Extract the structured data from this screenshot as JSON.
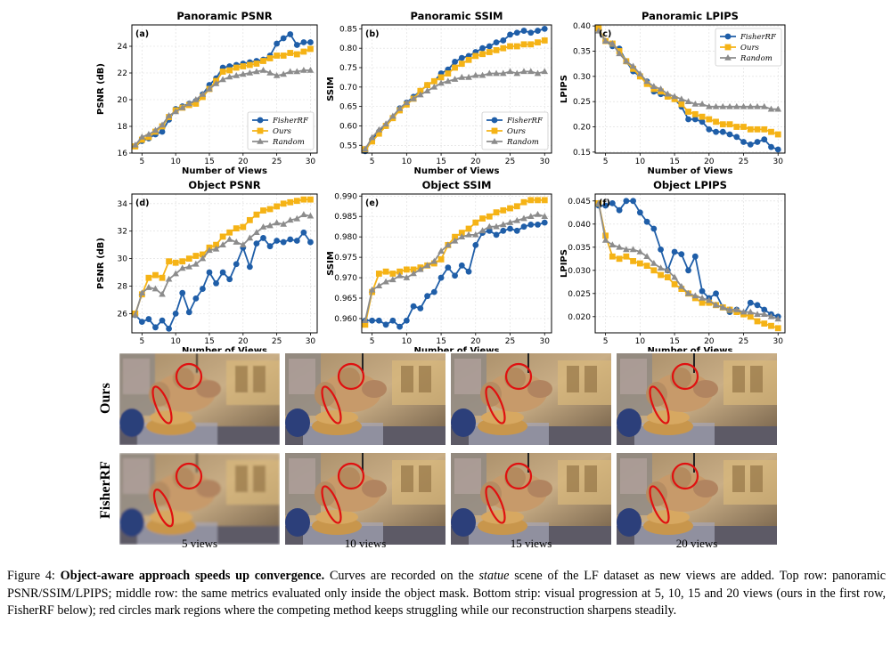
{
  "x_label": "Number of Views",
  "legend_entries": [
    "FisherRF",
    "Ours",
    "Random"
  ],
  "series_colors": {
    "FisherRF": "#1f5ea8",
    "Ours": "#f5b316",
    "Random": "#8c8c8c"
  },
  "chart_data": [
    {
      "type": "line",
      "id": "a",
      "panel_tag": "(a)",
      "title": "Panoramic PSNR",
      "ylabel": "PSNR (dB)",
      "xlim": [
        3.5,
        31
      ],
      "ylim": [
        16,
        25.6
      ],
      "xticks": [
        5,
        10,
        15,
        20,
        25,
        30
      ],
      "yticks": [
        16,
        18,
        20,
        22,
        24
      ],
      "ytick_labels": [
        "16",
        "18",
        "20",
        "22",
        "24"
      ],
      "legend": "bottom-right",
      "x": [
        4,
        5,
        6,
        7,
        8,
        9,
        10,
        11,
        12,
        13,
        14,
        15,
        16,
        17,
        18,
        19,
        20,
        21,
        22,
        23,
        24,
        25,
        26,
        27,
        28,
        29,
        30
      ],
      "series": [
        {
          "name": "FisherRF",
          "values": [
            16.5,
            16.9,
            17.1,
            17.4,
            17.6,
            18.5,
            19.3,
            19.5,
            19.7,
            19.9,
            20.4,
            21.1,
            21.6,
            22.4,
            22.5,
            22.6,
            22.7,
            22.8,
            22.9,
            23.0,
            23.3,
            24.2,
            24.6,
            24.9,
            24.1,
            24.3,
            24.3
          ]
        },
        {
          "name": "Ours",
          "values": [
            16.5,
            17.0,
            17.2,
            17.6,
            18.0,
            18.7,
            19.2,
            19.4,
            19.6,
            19.7,
            20.2,
            20.8,
            21.4,
            22.1,
            22.2,
            22.4,
            22.5,
            22.6,
            22.7,
            22.9,
            23.1,
            23.3,
            23.3,
            23.5,
            23.4,
            23.6,
            23.8
          ]
        },
        {
          "name": "Random",
          "values": [
            16.6,
            17.2,
            17.4,
            17.7,
            18.1,
            18.8,
            19.1,
            19.4,
            19.7,
            20.0,
            20.4,
            20.8,
            21.2,
            21.5,
            21.7,
            21.8,
            21.9,
            22.0,
            22.1,
            22.2,
            22.0,
            21.8,
            21.9,
            22.1,
            22.1,
            22.2,
            22.2
          ]
        }
      ]
    },
    {
      "type": "line",
      "id": "b",
      "panel_tag": "(b)",
      "title": "Panoramic SSIM",
      "ylabel": "SSIM",
      "xlim": [
        3.5,
        31
      ],
      "ylim": [
        0.53,
        0.86
      ],
      "xticks": [
        5,
        10,
        15,
        20,
        25,
        30
      ],
      "yticks": [
        0.55,
        0.6,
        0.65,
        0.7,
        0.75,
        0.8,
        0.85
      ],
      "ytick_labels": [
        "0.55",
        "0.60",
        "0.65",
        "0.70",
        "0.75",
        "0.80",
        "0.85"
      ],
      "legend": "bottom-right",
      "x": [
        4,
        5,
        6,
        7,
        8,
        9,
        10,
        11,
        12,
        13,
        14,
        15,
        16,
        17,
        18,
        19,
        20,
        21,
        22,
        23,
        24,
        25,
        26,
        27,
        28,
        29,
        30
      ],
      "series": [
        {
          "name": "FisherRF",
          "values": [
            0.535,
            0.565,
            0.585,
            0.6,
            0.62,
            0.645,
            0.66,
            0.675,
            0.69,
            0.705,
            0.715,
            0.735,
            0.745,
            0.765,
            0.775,
            0.78,
            0.79,
            0.8,
            0.805,
            0.815,
            0.82,
            0.835,
            0.84,
            0.845,
            0.84,
            0.845,
            0.85
          ]
        },
        {
          "name": "Ours",
          "values": [
            0.54,
            0.56,
            0.58,
            0.6,
            0.62,
            0.64,
            0.655,
            0.67,
            0.69,
            0.705,
            0.715,
            0.725,
            0.735,
            0.75,
            0.76,
            0.77,
            0.78,
            0.785,
            0.79,
            0.795,
            0.8,
            0.805,
            0.805,
            0.81,
            0.81,
            0.815,
            0.82
          ]
        },
        {
          "name": "Random",
          "values": [
            0.54,
            0.57,
            0.59,
            0.605,
            0.625,
            0.645,
            0.66,
            0.67,
            0.68,
            0.69,
            0.7,
            0.71,
            0.715,
            0.72,
            0.725,
            0.725,
            0.73,
            0.73,
            0.735,
            0.735,
            0.735,
            0.74,
            0.735,
            0.74,
            0.74,
            0.735,
            0.74
          ]
        }
      ]
    },
    {
      "type": "line",
      "id": "c",
      "panel_tag": "(c)",
      "title": "Panoramic LPIPS",
      "ylabel": "LPIPS",
      "xlim": [
        3.5,
        31
      ],
      "ylim": [
        0.148,
        0.402
      ],
      "xticks": [
        5,
        10,
        15,
        20,
        25,
        30
      ],
      "yticks": [
        0.15,
        0.2,
        0.25,
        0.3,
        0.35,
        0.4
      ],
      "ytick_labels": [
        "0.15",
        "0.20",
        "0.25",
        "0.30",
        "0.35",
        "0.40"
      ],
      "legend": "top-right",
      "x": [
        4,
        5,
        6,
        7,
        8,
        9,
        10,
        11,
        12,
        13,
        14,
        15,
        16,
        17,
        18,
        19,
        20,
        21,
        22,
        23,
        24,
        25,
        26,
        27,
        28,
        29,
        30
      ],
      "series": [
        {
          "name": "FisherRF",
          "values": [
            0.395,
            0.37,
            0.36,
            0.355,
            0.33,
            0.31,
            0.3,
            0.29,
            0.27,
            0.265,
            0.26,
            0.255,
            0.24,
            0.215,
            0.215,
            0.21,
            0.195,
            0.19,
            0.19,
            0.185,
            0.18,
            0.17,
            0.165,
            0.17,
            0.175,
            0.16,
            0.155
          ]
        },
        {
          "name": "Ours",
          "values": [
            0.395,
            0.37,
            0.365,
            0.35,
            0.33,
            0.315,
            0.3,
            0.285,
            0.275,
            0.27,
            0.26,
            0.255,
            0.245,
            0.23,
            0.225,
            0.22,
            0.215,
            0.21,
            0.205,
            0.205,
            0.2,
            0.2,
            0.195,
            0.195,
            0.195,
            0.19,
            0.185
          ]
        },
        {
          "name": "Random",
          "values": [
            0.39,
            0.37,
            0.365,
            0.345,
            0.33,
            0.32,
            0.305,
            0.29,
            0.28,
            0.275,
            0.265,
            0.26,
            0.255,
            0.25,
            0.245,
            0.245,
            0.24,
            0.24,
            0.24,
            0.24,
            0.24,
            0.24,
            0.24,
            0.24,
            0.24,
            0.235,
            0.235
          ]
        }
      ]
    },
    {
      "type": "line",
      "id": "d",
      "panel_tag": "(d)",
      "title": "Object PSNR",
      "ylabel": "PSNR (dB)",
      "xlim": [
        3.5,
        31
      ],
      "ylim": [
        24.6,
        34.7
      ],
      "xticks": [
        5,
        10,
        15,
        20,
        25,
        30
      ],
      "yticks": [
        26,
        28,
        30,
        32,
        34
      ],
      "ytick_labels": [
        "26",
        "28",
        "30",
        "32",
        "34"
      ],
      "legend": "none",
      "x": [
        4,
        5,
        6,
        7,
        8,
        9,
        10,
        11,
        12,
        13,
        14,
        15,
        16,
        17,
        18,
        19,
        20,
        21,
        22,
        23,
        24,
        25,
        26,
        27,
        28,
        29,
        30
      ],
      "series": [
        {
          "name": "FisherRF",
          "values": [
            25.9,
            25.4,
            25.6,
            25.0,
            25.5,
            24.9,
            26.0,
            27.5,
            26.1,
            27.1,
            27.8,
            29.0,
            28.2,
            29.0,
            28.5,
            29.6,
            30.8,
            29.4,
            31.1,
            31.5,
            30.9,
            31.3,
            31.2,
            31.4,
            31.3,
            31.9,
            31.2
          ]
        },
        {
          "name": "Ours",
          "values": [
            26.0,
            27.4,
            28.6,
            28.8,
            28.6,
            29.8,
            29.7,
            29.8,
            30.0,
            30.2,
            30.3,
            30.8,
            31.0,
            31.6,
            31.9,
            32.2,
            32.3,
            32.8,
            33.2,
            33.5,
            33.6,
            33.8,
            34.0,
            34.1,
            34.2,
            34.3,
            34.3
          ]
        },
        {
          "name": "Random",
          "values": [
            25.9,
            27.5,
            27.9,
            27.8,
            27.4,
            28.5,
            28.9,
            29.3,
            29.4,
            29.6,
            30.0,
            30.6,
            30.7,
            31.0,
            31.4,
            31.2,
            31.0,
            31.5,
            31.9,
            32.3,
            32.4,
            32.6,
            32.5,
            32.8,
            32.9,
            33.2,
            33.1
          ]
        }
      ]
    },
    {
      "type": "line",
      "id": "e",
      "panel_tag": "(e)",
      "title": "Object SSIM",
      "ylabel": "SSIM",
      "xlim": [
        3.5,
        31
      ],
      "ylim": [
        0.9565,
        0.9905
      ],
      "xticks": [
        5,
        10,
        15,
        20,
        25,
        30
      ],
      "yticks": [
        0.96,
        0.965,
        0.97,
        0.975,
        0.98,
        0.985,
        0.99
      ],
      "ytick_labels": [
        "0.960",
        "0.965",
        "0.970",
        "0.975",
        "0.980",
        "0.985",
        "0.990"
      ],
      "legend": "none",
      "x": [
        4,
        5,
        6,
        7,
        8,
        9,
        10,
        11,
        12,
        13,
        14,
        15,
        16,
        17,
        18,
        19,
        20,
        21,
        22,
        23,
        24,
        25,
        26,
        27,
        28,
        29,
        30
      ],
      "series": [
        {
          "name": "FisherRF",
          "values": [
            0.9595,
            0.9595,
            0.9595,
            0.9585,
            0.9595,
            0.958,
            0.9595,
            0.963,
            0.9625,
            0.9655,
            0.9665,
            0.97,
            0.9725,
            0.9705,
            0.973,
            0.9715,
            0.978,
            0.981,
            0.9815,
            0.9805,
            0.9815,
            0.982,
            0.9815,
            0.9825,
            0.983,
            0.983,
            0.9835
          ]
        },
        {
          "name": "Ours",
          "values": [
            0.9585,
            0.9665,
            0.971,
            0.9715,
            0.971,
            0.9715,
            0.972,
            0.972,
            0.9725,
            0.973,
            0.9735,
            0.9745,
            0.978,
            0.98,
            0.981,
            0.982,
            0.9835,
            0.9845,
            0.985,
            0.986,
            0.9865,
            0.987,
            0.9875,
            0.9885,
            0.989,
            0.989,
            0.989
          ]
        },
        {
          "name": "Random",
          "values": [
            0.9595,
            0.967,
            0.968,
            0.969,
            0.9695,
            0.9705,
            0.97,
            0.971,
            0.972,
            0.973,
            0.974,
            0.9765,
            0.978,
            0.979,
            0.98,
            0.9805,
            0.9805,
            0.9815,
            0.9825,
            0.9825,
            0.983,
            0.9835,
            0.984,
            0.9845,
            0.985,
            0.9855,
            0.985
          ]
        }
      ]
    },
    {
      "type": "line",
      "id": "f",
      "panel_tag": "(f)",
      "title": "Object LPIPS",
      "ylabel": "LPIPS",
      "xlim": [
        3.5,
        31
      ],
      "ylim": [
        0.0165,
        0.0465
      ],
      "xticks": [
        5,
        10,
        15,
        20,
        25,
        30
      ],
      "yticks": [
        0.02,
        0.025,
        0.03,
        0.035,
        0.04,
        0.045
      ],
      "ytick_labels": [
        "0.020",
        "0.025",
        "0.030",
        "0.035",
        "0.040",
        "0.045"
      ],
      "legend": "none",
      "x": [
        4,
        5,
        6,
        7,
        8,
        9,
        10,
        11,
        12,
        13,
        14,
        15,
        16,
        17,
        18,
        19,
        20,
        21,
        22,
        23,
        24,
        25,
        26,
        27,
        28,
        29,
        30
      ],
      "series": [
        {
          "name": "FisherRF",
          "values": [
            0.044,
            0.044,
            0.0445,
            0.043,
            0.045,
            0.045,
            0.0425,
            0.0405,
            0.039,
            0.0345,
            0.03,
            0.034,
            0.0335,
            0.03,
            0.033,
            0.0255,
            0.024,
            0.025,
            0.022,
            0.021,
            0.0215,
            0.0205,
            0.023,
            0.0225,
            0.0215,
            0.0205,
            0.02
          ]
        },
        {
          "name": "Ours",
          "values": [
            0.0445,
            0.0375,
            0.033,
            0.0325,
            0.033,
            0.032,
            0.0315,
            0.031,
            0.03,
            0.029,
            0.0285,
            0.027,
            0.026,
            0.025,
            0.024,
            0.023,
            0.023,
            0.0225,
            0.022,
            0.0215,
            0.021,
            0.0205,
            0.02,
            0.019,
            0.0185,
            0.018,
            0.0175
          ]
        },
        {
          "name": "Random",
          "values": [
            0.0445,
            0.0365,
            0.0355,
            0.035,
            0.0345,
            0.0345,
            0.034,
            0.033,
            0.0315,
            0.0305,
            0.03,
            0.0285,
            0.0265,
            0.025,
            0.0245,
            0.024,
            0.0235,
            0.0225,
            0.022,
            0.0215,
            0.0215,
            0.021,
            0.021,
            0.0205,
            0.0205,
            0.02,
            0.0195
          ]
        }
      ]
    }
  ],
  "strip": {
    "row_labels": [
      "Ours",
      "FisherRF"
    ],
    "column_labels": [
      "5 views",
      "10 views",
      "15 views",
      "20 views"
    ]
  },
  "caption": {
    "prefix": "Figure 4: ",
    "bold": "Object-aware approach speeds up convergence.",
    "text1": " Curves are recorded on the ",
    "italic": "statue",
    "text2": " scene of the LF dataset as new views are added. Top row: panoramic PSNR/SSIM/LPIPS; middle row: the same metrics evaluated only inside the object mask. Bottom strip: visual progression at 5, 10, 15 and 20 views (ours in the first row, FisherRF below); red circles mark regions where the competing method keeps struggling while our reconstruction sharpens steadily."
  }
}
